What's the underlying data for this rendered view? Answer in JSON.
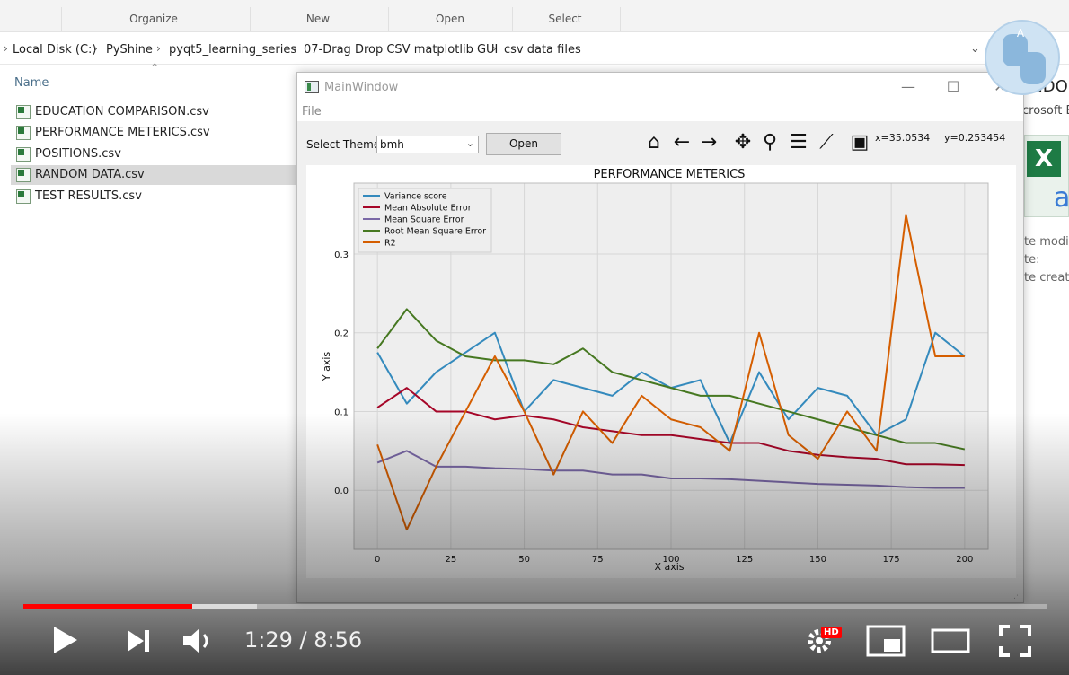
{
  "ribbon": {
    "groups": [
      "Organize",
      "New",
      "Open",
      "Select"
    ]
  },
  "address": {
    "crumbs": [
      "Local Disk (C:)",
      "PyShine",
      "pyqt5_learning_series",
      "07-Drag Drop CSV matplotlib GUI",
      "csv data files"
    ]
  },
  "file_list": {
    "column": "Name",
    "files": [
      "EDUCATION COMPARISON.csv",
      "PERFORMANCE METERICS.csv",
      "POSITIONS.csv",
      "RANDOM DATA.csv",
      "TEST RESULTS.csv"
    ],
    "selected": "RANDOM DATA.csv"
  },
  "details_pane": {
    "title": "ANDO",
    "subtitle": "crosoft E",
    "meta": [
      "te modif",
      "te:",
      "te create"
    ]
  },
  "app": {
    "window_title": "MainWindow",
    "menu": [
      "File"
    ],
    "theme_label": "Select Theme",
    "theme_value": "bmh",
    "open_label": "Open",
    "coords": {
      "x": "x=35.0534",
      "y": "y=0.253454"
    },
    "tools": [
      "home-icon",
      "back-arrow-icon",
      "forward-arrow-icon",
      "pan-icon",
      "zoom-icon",
      "subplots-config-icon",
      "axes-edit-icon",
      "save-icon"
    ]
  },
  "chart_data": {
    "type": "line",
    "title": "PERFORMANCE METERICS",
    "xlabel": "X axis",
    "ylabel": "Y axis",
    "xlim": [
      -8,
      208
    ],
    "ylim": [
      -0.075,
      0.39
    ],
    "xticks": [
      0,
      25,
      50,
      75,
      100,
      125,
      150,
      175,
      200
    ],
    "yticks": [
      0.0,
      0.1,
      0.2,
      0.3
    ],
    "ytick_labels": [
      "0.0",
      "0.1",
      "0.2",
      "0.3"
    ],
    "grid": true,
    "legend_position": "top-left",
    "x": [
      0,
      10,
      20,
      30,
      40,
      50,
      60,
      70,
      80,
      90,
      100,
      110,
      120,
      130,
      140,
      150,
      160,
      170,
      180,
      190,
      200
    ],
    "series": [
      {
        "name": "Variance score",
        "color": "#348ABD",
        "values": [
          0.175,
          0.11,
          0.15,
          0.175,
          0.2,
          0.1,
          0.14,
          0.13,
          0.12,
          0.15,
          0.13,
          0.14,
          0.06,
          0.15,
          0.09,
          0.13,
          0.12,
          0.07,
          0.09,
          0.2,
          0.17
        ]
      },
      {
        "name": "Mean Absolute Error",
        "color": "#A60628",
        "values": [
          0.105,
          0.13,
          0.1,
          0.1,
          0.09,
          0.095,
          0.09,
          0.08,
          0.075,
          0.07,
          0.07,
          0.065,
          0.06,
          0.06,
          0.05,
          0.045,
          0.042,
          0.04,
          0.033,
          0.033,
          0.032
        ]
      },
      {
        "name": "Mean Square Error",
        "color": "#7A68A6",
        "values": [
          0.035,
          0.05,
          0.03,
          0.03,
          0.028,
          0.027,
          0.025,
          0.025,
          0.02,
          0.02,
          0.015,
          0.015,
          0.014,
          0.012,
          0.01,
          0.008,
          0.007,
          0.006,
          0.004,
          0.003,
          0.003
        ]
      },
      {
        "name": "Root Mean Square Error",
        "color": "#467821",
        "values": [
          0.18,
          0.23,
          0.19,
          0.17,
          0.165,
          0.165,
          0.16,
          0.18,
          0.15,
          0.14,
          0.13,
          0.12,
          0.12,
          0.11,
          0.1,
          0.09,
          0.08,
          0.07,
          0.06,
          0.06,
          0.052
        ]
      },
      {
        "name": "R2",
        "color": "#D55E00",
        "values": [
          0.058,
          -0.05,
          0.03,
          0.1,
          0.17,
          0.1,
          0.02,
          0.1,
          0.06,
          0.12,
          0.09,
          0.08,
          0.05,
          0.2,
          0.07,
          0.04,
          0.1,
          0.05,
          0.35,
          0.17,
          0.17
        ]
      }
    ]
  },
  "player": {
    "time": "1:29 / 8:56",
    "played_fraction": 0.165,
    "buffered_fraction": 0.228,
    "hd_badge": "HD",
    "controls": [
      "play-icon",
      "next-icon",
      "volume-icon",
      "settings-icon",
      "miniplayer-icon",
      "theater-icon",
      "fullscreen-icon"
    ]
  }
}
